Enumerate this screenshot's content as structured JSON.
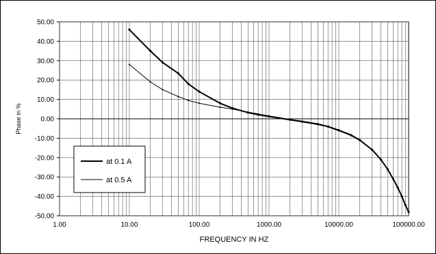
{
  "chart_data": {
    "type": "line",
    "x_scale": "log",
    "xlabel": "FREQUENCY IN HZ",
    "ylabel": "Phase in %",
    "xlim": [
      1,
      100000
    ],
    "ylim": [
      -50,
      50
    ],
    "grid": true,
    "legend_position": "left",
    "x_tick_labels": [
      "1.00",
      "10.00",
      "100.00",
      "1000.00",
      "10000.00",
      "100000.00"
    ],
    "y_tick_labels": [
      "50.00",
      "40.00",
      "30.00",
      "20.00",
      "10.00",
      "0.00",
      "-10.00",
      "-20.00",
      "-30.00",
      "-40.00",
      "-50.00"
    ],
    "series": [
      {
        "name": "at 0.1 A",
        "color": "#000000",
        "x": [
          10,
          20,
          30,
          50,
          70,
          100,
          200,
          300,
          500,
          700,
          1000,
          2000,
          3000,
          5000,
          7000,
          10000,
          15000,
          20000,
          30000,
          40000,
          50000,
          60000,
          70000,
          80000,
          90000,
          100000
        ],
        "y": [
          46,
          35,
          29,
          23.5,
          18,
          14,
          8,
          5.5,
          3.2,
          2.1,
          1.2,
          -0.5,
          -1.5,
          -2.8,
          -4,
          -6,
          -8.5,
          -11,
          -16,
          -21,
          -26,
          -31,
          -35.5,
          -40,
          -44.5,
          -48
        ]
      },
      {
        "name": "at 0.5 A",
        "color": "#000000",
        "x": [
          10,
          20,
          30,
          50,
          70,
          100,
          200,
          300,
          500,
          700,
          1000,
          2000,
          3000,
          5000,
          7000,
          10000,
          15000,
          20000,
          30000,
          40000,
          50000,
          60000,
          70000,
          80000,
          90000,
          100000
        ],
        "y": [
          28,
          19,
          15,
          11.5,
          9.5,
          8,
          6,
          5,
          3.5,
          2.5,
          1.5,
          -0.3,
          -1.2,
          -2.5,
          -3.8,
          -5.7,
          -8.2,
          -10.8,
          -15.8,
          -21,
          -26,
          -31,
          -35.5,
          -40,
          -44.5,
          -48
        ]
      }
    ]
  }
}
